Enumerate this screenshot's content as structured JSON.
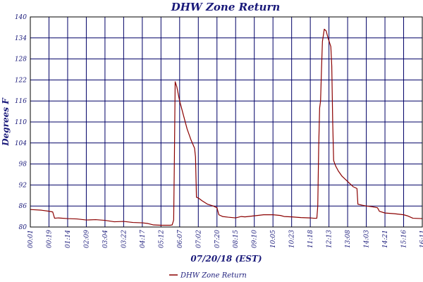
{
  "chart_data": {
    "type": "line",
    "title": "DHW Zone Return",
    "xlabel": "07/20/18 (EST)",
    "ylabel": "Degrees F",
    "ylim": [
      80,
      140
    ],
    "yticks": [
      80,
      86,
      92,
      98,
      104,
      110,
      116,
      122,
      128,
      134,
      140
    ],
    "xticks": [
      "00:01",
      "00:19",
      "01:14",
      "02:09",
      "03:04",
      "03:22",
      "04:17",
      "05:12",
      "06:07",
      "07:02",
      "07:20",
      "08:15",
      "09:10",
      "10:05",
      "10:23",
      "11:18",
      "12:13",
      "13:08",
      "14:03",
      "14:21",
      "15:16",
      "16:11"
    ],
    "xlim": [
      0,
      21
    ],
    "grid": true,
    "legend_position": "bottom",
    "series": [
      {
        "name": "DHW Zone Return",
        "color": "#8b0000",
        "points": [
          [
            0,
            85.0
          ],
          [
            0.6,
            84.8
          ],
          [
            1,
            84.5
          ],
          [
            1.2,
            84.3
          ],
          [
            1.3,
            82.5
          ],
          [
            1.5,
            82.6
          ],
          [
            2,
            82.4
          ],
          [
            2.5,
            82.3
          ],
          [
            3,
            82.0
          ],
          [
            3.5,
            82.1
          ],
          [
            4,
            81.9
          ],
          [
            4.5,
            81.5
          ],
          [
            5,
            81.6
          ],
          [
            5.5,
            81.3
          ],
          [
            6,
            81.2
          ],
          [
            6.3,
            81.0
          ],
          [
            6.6,
            80.6
          ],
          [
            7,
            80.5
          ],
          [
            7.5,
            80.5
          ],
          [
            7.6,
            80.6
          ],
          [
            7.68,
            82
          ],
          [
            7.72,
            100
          ],
          [
            7.76,
            121.5
          ],
          [
            7.85,
            120
          ],
          [
            8,
            116
          ],
          [
            8.2,
            112
          ],
          [
            8.4,
            108
          ],
          [
            8.6,
            105
          ],
          [
            8.8,
            102.5
          ],
          [
            8.85,
            100
          ],
          [
            8.9,
            88.5
          ],
          [
            9,
            88.3
          ],
          [
            9.2,
            87.5
          ],
          [
            9.5,
            86.5
          ],
          [
            9.8,
            86.0
          ],
          [
            10,
            85.5
          ],
          [
            10.1,
            83.5
          ],
          [
            10.3,
            83.0
          ],
          [
            10.6,
            82.8
          ],
          [
            11,
            82.6
          ],
          [
            11.3,
            83.0
          ],
          [
            11.5,
            82.9
          ],
          [
            12,
            83.2
          ],
          [
            12.5,
            83.5
          ],
          [
            13,
            83.5
          ],
          [
            13.4,
            83.3
          ],
          [
            13.6,
            83.0
          ],
          [
            14,
            82.9
          ],
          [
            14.5,
            82.7
          ],
          [
            15,
            82.6
          ],
          [
            15.2,
            82.5
          ],
          [
            15.35,
            82.5
          ],
          [
            15.4,
            86
          ],
          [
            15.45,
            103
          ],
          [
            15.5,
            114
          ],
          [
            15.55,
            116
          ],
          [
            15.6,
            125
          ],
          [
            15.65,
            133
          ],
          [
            15.75,
            136.5
          ],
          [
            15.85,
            136
          ],
          [
            15.95,
            134
          ],
          [
            16.1,
            131.5
          ],
          [
            16.15,
            126
          ],
          [
            16.2,
            110
          ],
          [
            16.25,
            99
          ],
          [
            16.35,
            97.5
          ],
          [
            16.5,
            96
          ],
          [
            16.7,
            94.5
          ],
          [
            17,
            93
          ],
          [
            17.3,
            91.5
          ],
          [
            17.5,
            91
          ],
          [
            17.55,
            86.5
          ],
          [
            17.8,
            86.2
          ],
          [
            18,
            86.0
          ],
          [
            18.3,
            85.8
          ],
          [
            18.6,
            85.5
          ],
          [
            18.7,
            84.5
          ],
          [
            19,
            84.0
          ],
          [
            19.5,
            83.8
          ],
          [
            20,
            83.5
          ],
          [
            20.2,
            83.2
          ],
          [
            20.5,
            82.5
          ],
          [
            21,
            82.4
          ]
        ]
      }
    ]
  }
}
